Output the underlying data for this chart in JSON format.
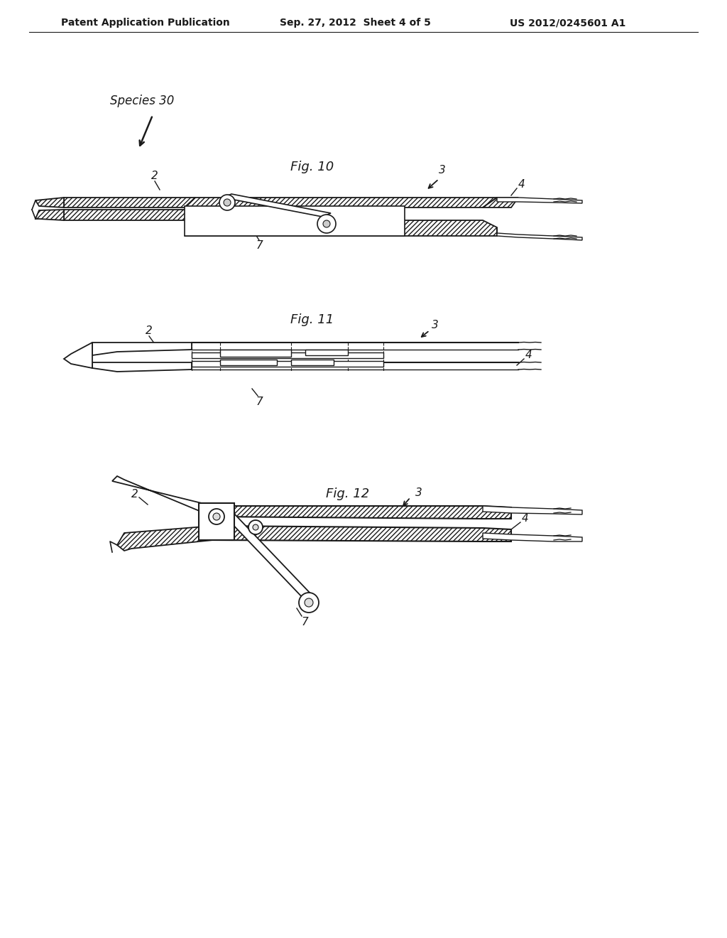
{
  "bg_color": "#ffffff",
  "header_left": "Patent Application Publication",
  "header_center": "Sep. 27, 2012  Sheet 4 of 5",
  "header_right": "US 2012/0245601 A1",
  "species_label": "Species 30",
  "fig10_label": "Fig. 10",
  "fig11_label": "Fig. 11",
  "fig12_label": "Fig. 12",
  "line_color": "#1a1a1a",
  "page_width": 10.24,
  "page_height": 13.2
}
